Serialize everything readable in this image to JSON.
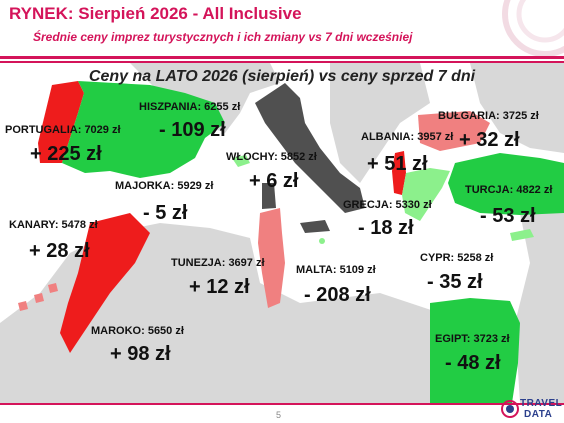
{
  "header": {
    "title": "RYNEK: Sierpień 2026 - All Inclusive",
    "subtitle": "Średnie ceny imprez turystycznych i ich zmiany vs 7 dni wcześniej"
  },
  "map": {
    "heading": "Ceny na LATO 2026 (sierpień) vs ceny sprzed 7 dni",
    "colors": {
      "increase_strong": "#ee1c1c",
      "increase_mild": "#f08080",
      "decrease_strong": "#22cc44",
      "decrease_mild": "#8cf08c",
      "neutral": "#505050",
      "land": "#d8d8d8"
    },
    "destinations": [
      {
        "name": "PORTUGALIA: 7029 zł",
        "change": "+ 225 zł"
      },
      {
        "name": "HISZPANIA: 6255 zł",
        "change": "- 109 zł"
      },
      {
        "name": "WŁOCHY: 5852 zł",
        "change": "+ 6 zł"
      },
      {
        "name": "ALBANIA: 3957 zł",
        "change": "+ 51 zł"
      },
      {
        "name": "BUŁGARIA: 3725 zł",
        "change": "+ 32 zł"
      },
      {
        "name": "MAJORKA: 5929 zł",
        "change": "- 5 zł"
      },
      {
        "name": "GRECJA: 5330 zł",
        "change": "- 18 zł"
      },
      {
        "name": "TURCJA: 4822 zł",
        "change": "- 53 zł"
      },
      {
        "name": "KANARY: 5478 zł",
        "change": "+ 28 zł"
      },
      {
        "name": "TUNEZJA: 3697 zł",
        "change": "+ 12 zł"
      },
      {
        "name": "MALTA: 5109 zł",
        "change": "- 208 zł"
      },
      {
        "name": "CYPR: 5258 zł",
        "change": "- 35 zł"
      },
      {
        "name": "MAROKO: 5650 zł",
        "change": "+ 98 zł"
      },
      {
        "name": "EGIPT: 3723 zł",
        "change": "- 48 zł"
      }
    ]
  },
  "footer": {
    "page_number": "5",
    "logo_line1": "TRAVEL",
    "logo_line2": "DATA"
  }
}
